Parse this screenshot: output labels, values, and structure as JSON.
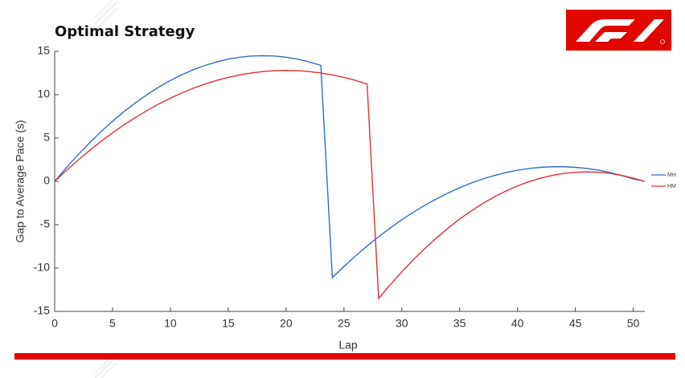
{
  "chart_data": {
    "type": "line",
    "title": "Optimal Strategy",
    "x_label": "Lap",
    "y_label": "Gap to Average Pace (s)",
    "x": [
      0,
      1,
      2,
      3,
      4,
      5,
      6,
      7,
      8,
      9,
      10,
      11,
      12,
      13,
      14,
      15,
      16,
      17,
      18,
      19,
      20,
      21,
      22,
      23,
      24,
      25,
      26,
      27,
      28,
      29,
      30,
      31,
      32,
      33,
      34,
      35,
      36,
      37,
      38,
      39,
      40,
      41,
      42,
      43,
      44,
      45,
      46,
      47,
      48,
      49,
      50,
      51
    ],
    "series": [
      {
        "name": "MH",
        "color": "#2f6fc0",
        "values": [
          0,
          1.57,
          3.04,
          4.43,
          5.73,
          6.94,
          8.06,
          9.08,
          10.03,
          10.88,
          11.64,
          12.31,
          12.89,
          13.38,
          13.78,
          14.1,
          14.32,
          14.46,
          14.5,
          14.46,
          14.32,
          14.1,
          13.78,
          13.38,
          -11.1,
          -9.82,
          -8.61,
          -7.46,
          -6.39,
          -5.38,
          -4.43,
          -3.56,
          -2.75,
          -2.01,
          -1.34,
          -0.73,
          -0.19,
          0.28,
          0.68,
          1.02,
          1.29,
          1.49,
          1.62,
          1.69,
          1.69,
          1.62,
          1.49,
          1.29,
          1.02,
          0.68,
          0.28,
          0
        ]
      },
      {
        "name": "HM",
        "color": "#e0303a",
        "values": [
          0,
          1.25,
          2.43,
          3.55,
          4.61,
          5.6,
          6.53,
          7.39,
          8.19,
          8.93,
          9.6,
          10.21,
          10.75,
          11.23,
          11.65,
          12.0,
          12.29,
          12.51,
          12.67,
          12.77,
          12.8,
          12.77,
          12.67,
          12.51,
          12.29,
          12.0,
          11.65,
          11.23,
          -13.5,
          -11.92,
          -10.44,
          -9.04,
          -7.73,
          -6.52,
          -5.39,
          -4.35,
          -3.41,
          -2.55,
          -1.78,
          -1.11,
          -0.52,
          -0.03,
          0.38,
          0.69,
          0.92,
          1.05,
          1.1,
          1.05,
          0.92,
          0.69,
          0.38,
          0
        ]
      }
    ],
    "xlim": [
      0,
      51
    ],
    "xticks": [
      0,
      5,
      10,
      15,
      20,
      25,
      30,
      35,
      40,
      45,
      50
    ],
    "ylim": [
      -15,
      15
    ],
    "yticks": [
      -15,
      -10,
      -5,
      0,
      5,
      10,
      15
    ],
    "grid": false,
    "legend": "right"
  }
}
